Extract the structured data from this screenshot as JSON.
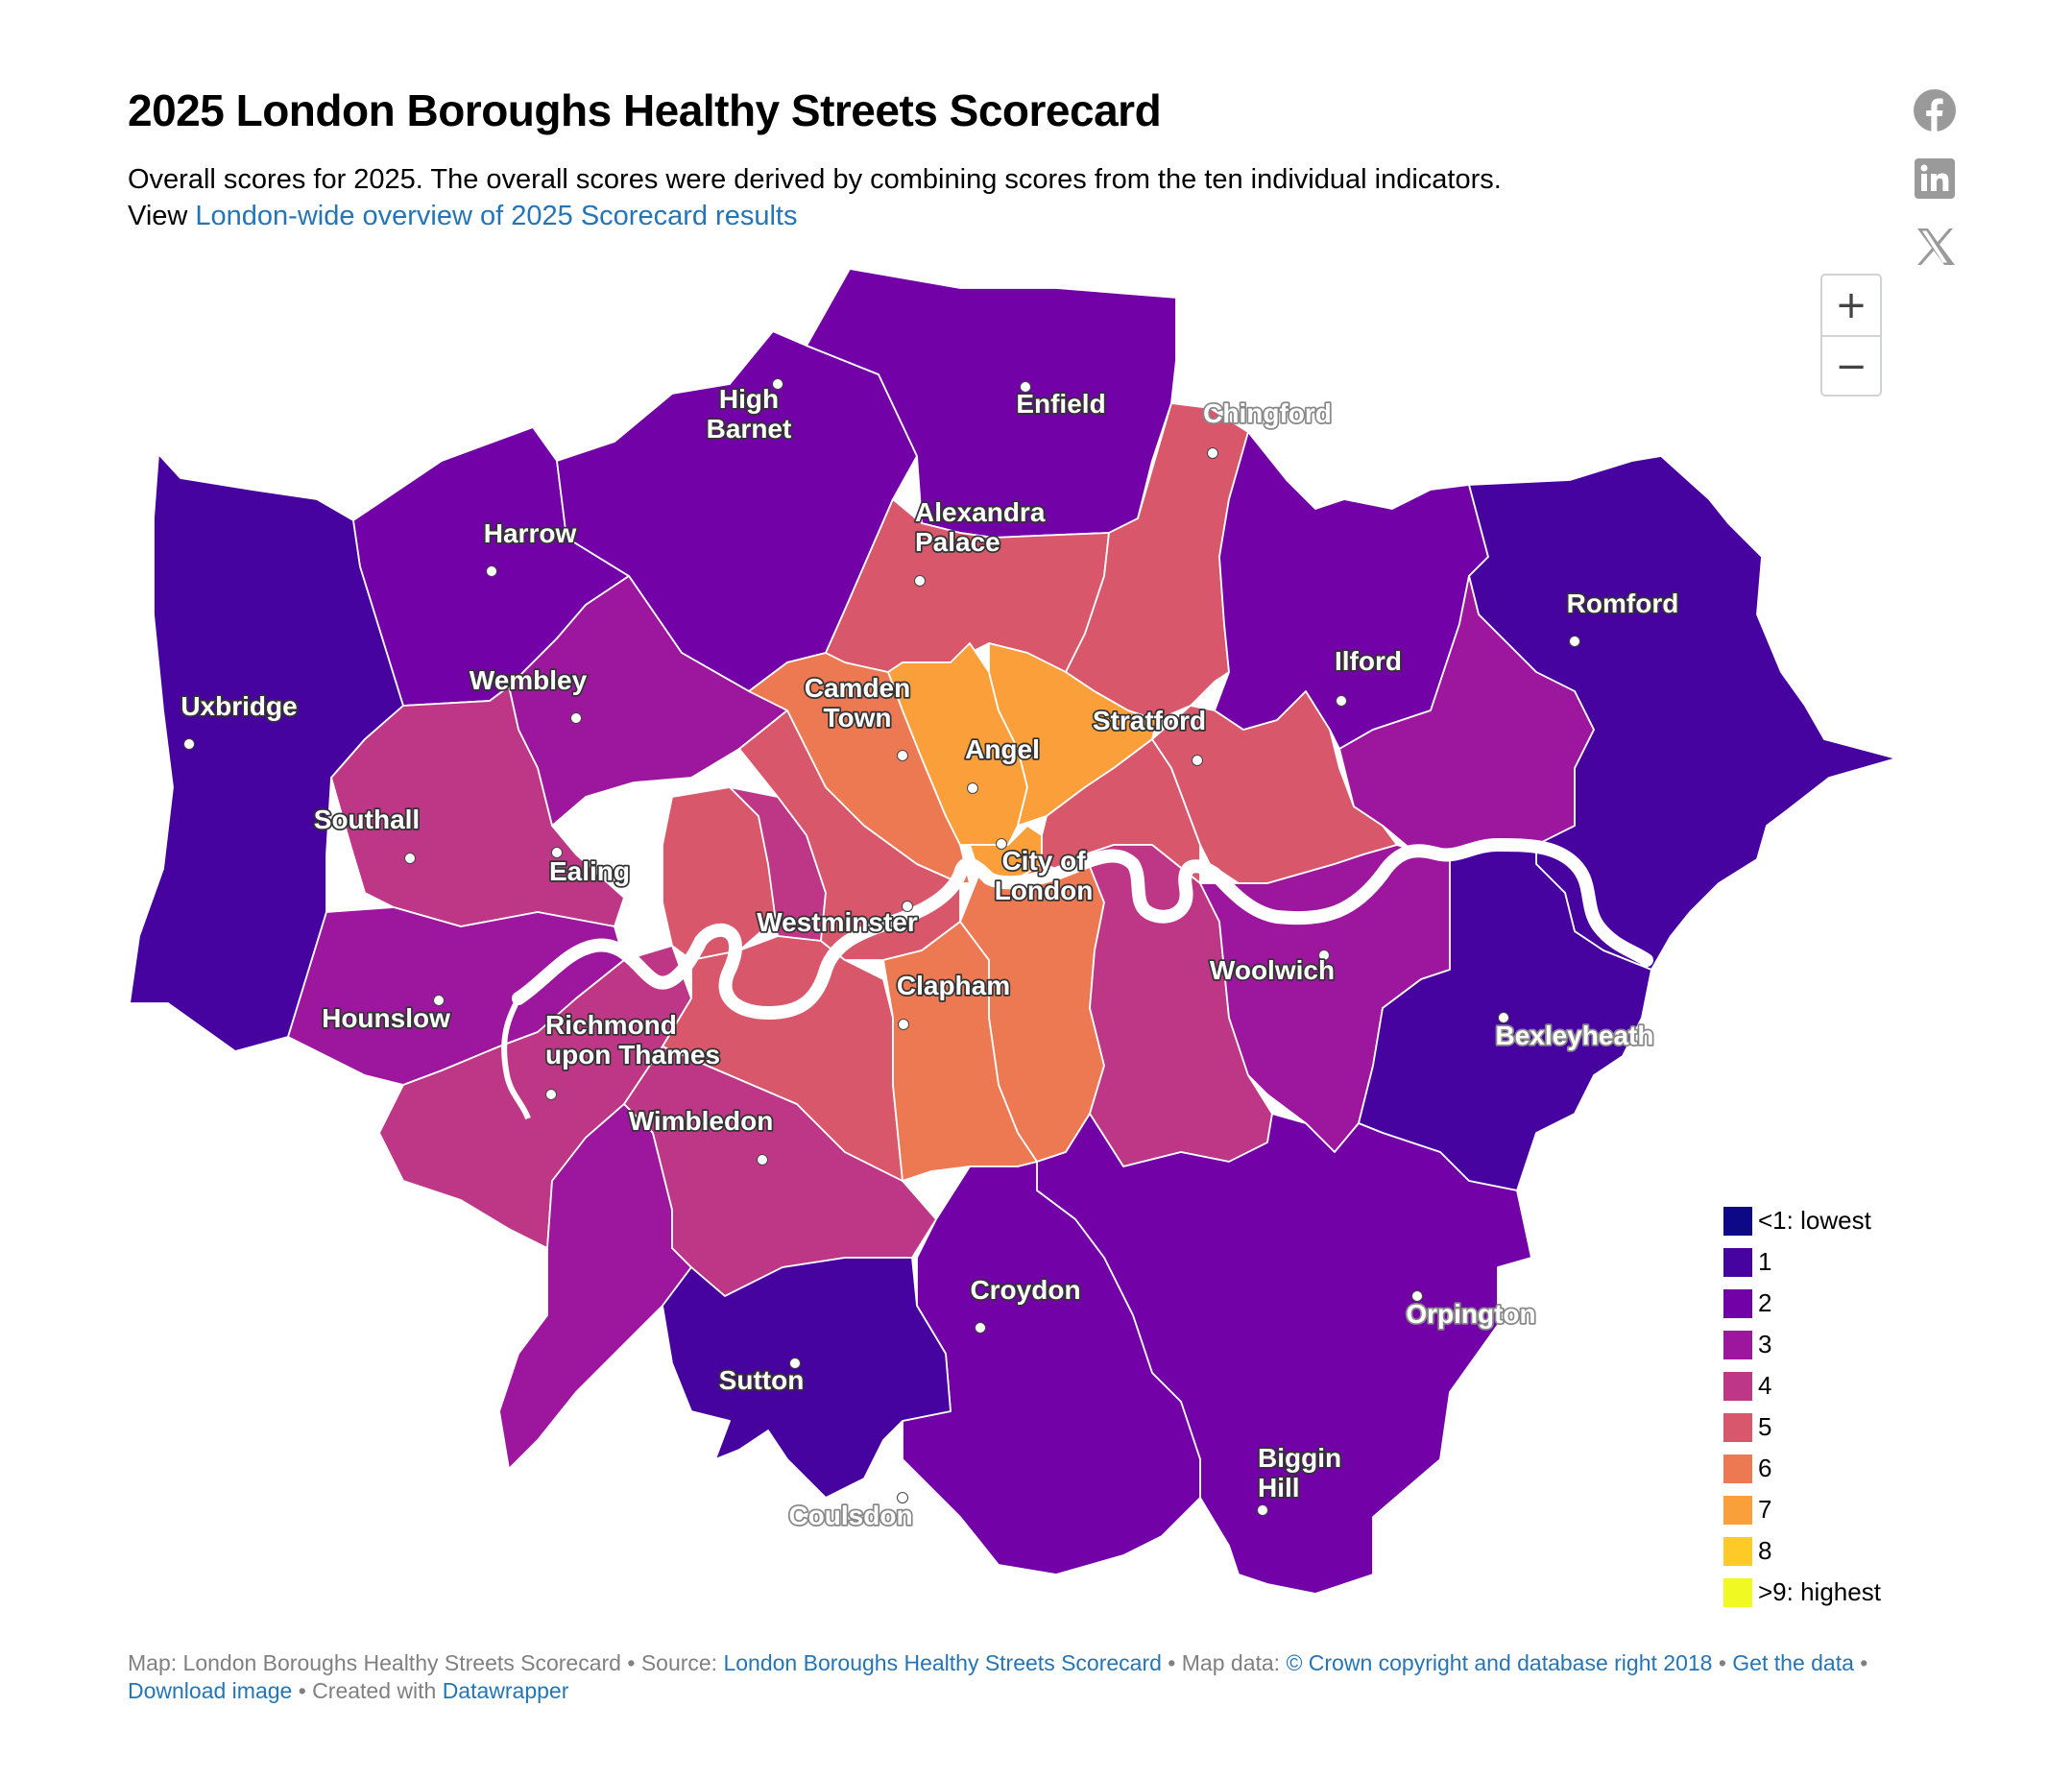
{
  "title": "2025 London Boroughs Healthy Streets Scorecard",
  "subtitle": {
    "line1": "Overall scores for 2025. The overall scores were derived by combining scores from the ten individual indicators.",
    "line2_prefix": "View ",
    "line2_link": "London-wide overview of 2025 Scorecard results"
  },
  "share_icons": [
    "facebook-icon",
    "linkedin-icon",
    "x-icon"
  ],
  "zoom": {
    "in": "+",
    "out": "−"
  },
  "map_data": {
    "type": "choropleth",
    "region": "Greater London",
    "scale_colors": {
      "0": "#0d0887",
      "1": "#46039f",
      "2": "#7201a8",
      "3": "#9c179e",
      "4": "#bd3786",
      "5": "#d8576b",
      "6": "#ed7953",
      "7": "#fb9f3a",
      "8": "#fdca26",
      "9": "#f0f921"
    },
    "place_labels": [
      "High Barnet",
      "Enfield",
      "Chingford",
      "Harrow",
      "Alexandra Palace",
      "Romford",
      "Uxbridge",
      "Wembley",
      "Camden Town",
      "Stratford",
      "Ilford",
      "Angel",
      "Southall",
      "Ealing",
      "City of London",
      "Westminster",
      "Woolwich",
      "Clapham",
      "Hounslow",
      "Richmond upon Thames",
      "Bexleyheath",
      "Wimbledon",
      "Croydon",
      "Orpington",
      "Sutton",
      "Biggin Hill",
      "Coulsdon"
    ]
  },
  "legend": [
    {
      "label": "<1: lowest",
      "color": "#0d0887"
    },
    {
      "label": "1",
      "color": "#46039f"
    },
    {
      "label": "2",
      "color": "#7201a8"
    },
    {
      "label": "3",
      "color": "#9c179e"
    },
    {
      "label": "4",
      "color": "#bd3786"
    },
    {
      "label": "5",
      "color": "#d8576b"
    },
    {
      "label": "6",
      "color": "#ed7953"
    },
    {
      "label": "7",
      "color": "#fb9f3a"
    },
    {
      "label": "8",
      "color": "#fdca26"
    },
    {
      "label": ">9: highest",
      "color": "#f0f921"
    }
  ],
  "footer": {
    "map_credit": "Map: London Boroughs Healthy Streets Scorecard",
    "source_prefix": "Source: ",
    "source_link": "London Boroughs Healthy Streets Scorecard",
    "mapdata_prefix": "Map data: ",
    "mapdata_link": "© Crown copyright and database right 2018",
    "get_data": "Get the data",
    "download": "Download image",
    "created_prefix": "Created with ",
    "created_link": "Datawrapper"
  }
}
